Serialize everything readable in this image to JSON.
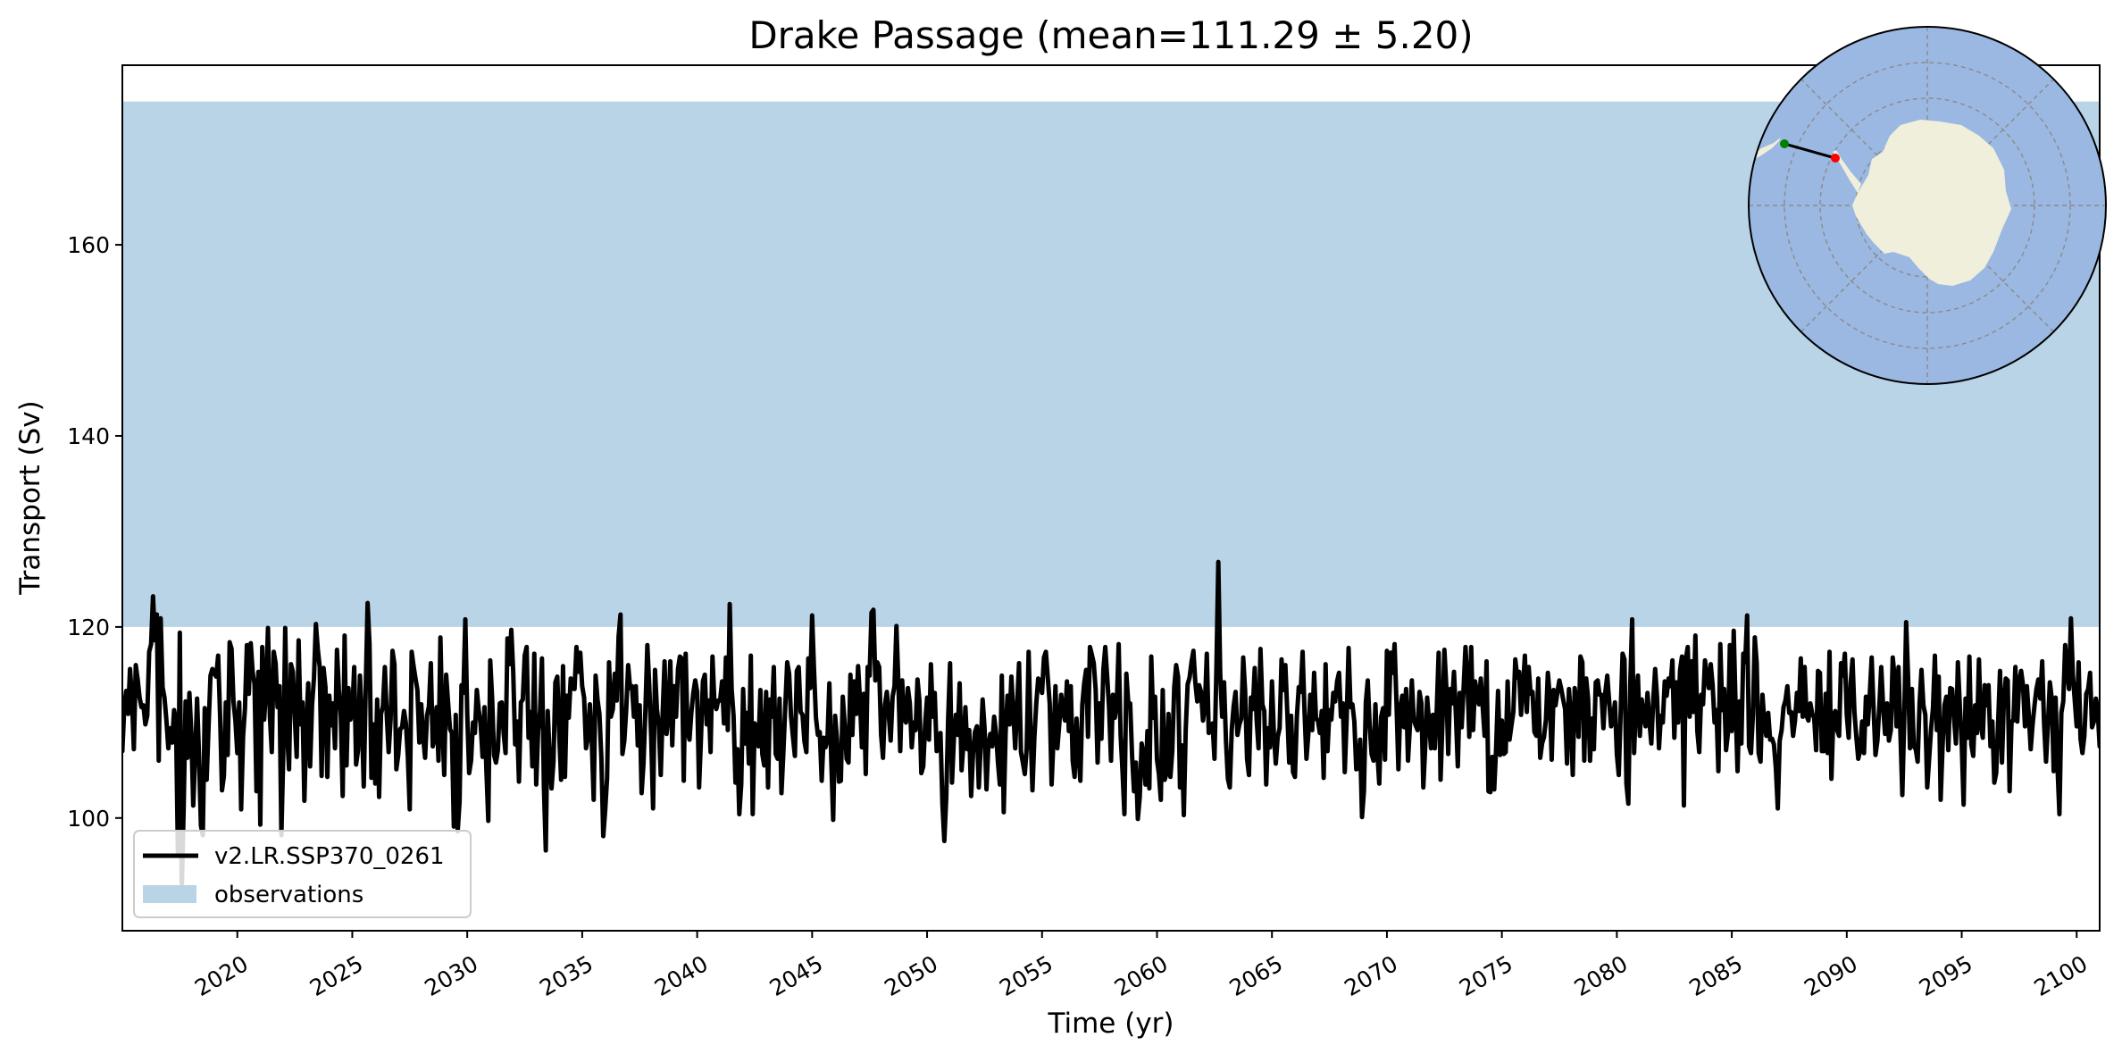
{
  "chart_data": {
    "type": "line",
    "title": "Drake Passage (mean=111.29 ± 5.20)",
    "xlabel": "Time (yr)",
    "ylabel": "Transport (Sv)",
    "xlim": [
      2015,
      2101
    ],
    "ylim": [
      88.2,
      178.8
    ],
    "x_ticks": [
      "2020",
      "2025",
      "2030",
      "2035",
      "2040",
      "2045",
      "2050",
      "2055",
      "2060",
      "2065",
      "2070",
      "2075",
      "2080",
      "2085",
      "2090",
      "2095",
      "2100"
    ],
    "y_ticks": [
      "100",
      "120",
      "140",
      "160"
    ],
    "grid": false,
    "legend_position": "lower-left",
    "observations_band": {
      "name": "observations",
      "ymin": 120,
      "ymax": 175,
      "color": "#b9d4e7"
    },
    "series": [
      {
        "name": "v2.LR.SSP370_0261",
        "color": "#000000",
        "start_year": 2015,
        "months_per_point": 1,
        "values": [
          107.0,
          111.6,
          113.3,
          110.9,
          115.6,
          112.6,
          107.2,
          116.0,
          114.5,
          112.6,
          111.6,
          111.8,
          109.8,
          110.7,
          117.4,
          118.2,
          123.2,
          118.6,
          121.3,
          106.0,
          120.9,
          113.7,
          112.6,
          110.2,
          107.3,
          109.4,
          107.9,
          111.3,
          110.2,
          96.1,
          119.4,
          92.4,
          101.0,
          112.2,
          106.3,
          113.1,
          108.9,
          101.3,
          106.6,
          112.5,
          106.6,
          99.2,
          98.2,
          111.5,
          104.0,
          109.6,
          114.9,
          115.6,
          115.1,
          114.8,
          117.0,
          110.8,
          102.9,
          104.4,
          112.1,
          106.6,
          118.4,
          117.7,
          112.2,
          110.2,
          106.8,
          112.1,
          100.9,
          108.5,
          111.5,
          118.1,
          113.0,
          118.3,
          115.3,
          114.0,
          102.8,
          115.3,
          99.3,
          117.9,
          110.3,
          113.5,
          119.9,
          110.6,
          106.9,
          117.4,
          116.2,
          111.6,
          113.8,
          98.2,
          106.8,
          119.9,
          108.9,
          105.1,
          116.1,
          115.3,
          110.5,
          106.4,
          118.6,
          109.8,
          112.1,
          101.8,
          109.5,
          114.1,
          105.4,
          111.8,
          114.6,
          120.3,
          117.7,
          115.8,
          104.4,
          115.7,
          113.7,
          104.3,
          112.8,
          109.7,
          112.0,
          107.3,
          117.6,
          113.5,
          110.7,
          102.3,
          119.1,
          105.5,
          113.6,
          110.3,
          111.0,
          115.8,
          105.6,
          107.1,
          114.9,
          110.4,
          103.3,
          113.4,
          122.5,
          118.2,
          104.2,
          109.8,
          103.6,
          112.4,
          102.2,
          110.9,
          111.7,
          115.8,
          110.7,
          106.9,
          110.3,
          117.5,
          116.1,
          105.1,
          106.6,
          109.3,
          109.5,
          111.2,
          109.9,
          106.4,
          100.9,
          117.4,
          115.9,
          114.6,
          113.4,
          107.9,
          111.9,
          108.5,
          106.3,
          110.7,
          111.7,
          116.2,
          107.5,
          108.4,
          111.6,
          106.0,
          118.9,
          109.8,
          104.5,
          115.0,
          112.1,
          109.3,
          108.9,
          99.1,
          110.8,
          98.6,
          101.7,
          113.9,
          113.1,
          120.8,
          110.9,
          104.7,
          106.0,
          110.0,
          108.9,
          113.4,
          111.3,
          109.8,
          106.4,
          111.6,
          105.0,
          99.7,
          116.5,
          112.5,
          106.6,
          105.8,
          107.1,
          112.0,
          112.1,
          108.9,
          106.8,
          118.8,
          116.1,
          119.7,
          115.3,
          107.7,
          110.1,
          103.8,
          112.1,
          112.4,
          117.0,
          117.9,
          108.4,
          111.1,
          105.4,
          117.2,
          103.5,
          109.1,
          111.2,
          116.7,
          103.4,
          96.6,
          111.2,
          106.6,
          103.1,
          105.9,
          114.2,
          114.8,
          108.8,
          104.0,
          115.9,
          104.3,
          112.8,
          110.5,
          114.6,
          113.6,
          113.5,
          117.9,
          115.3,
          117.3,
          113.8,
          112.6,
          107.3,
          108.4,
          111.9,
          108.1,
          101.9,
          114.9,
          112.4,
          110.9,
          106.3,
          98.1,
          100.8,
          104.2,
          116.3,
          110.6,
          111.4,
          115.1,
          112.3,
          119.0,
          121.3,
          106.7,
          108.1,
          111.4,
          116.0,
          113.6,
          113.8,
          110.6,
          113.8,
          107.6,
          111.8,
          102.6,
          105.7,
          111.3,
          118.1,
          113.9,
          108.5,
          101.0,
          115.5,
          111.4,
          109.7,
          104.5,
          111.0,
          116.4,
          108.8,
          110.6,
          116.4,
          107.6,
          113.8,
          110.6,
          115.6,
          116.9,
          116.7,
          103.9,
          117.2,
          109.1,
          108.2,
          111.1,
          113.1,
          114.4,
          113.2,
          103.2,
          108.4,
          114.3,
          115.0,
          109.8,
          112.3,
          106.9,
          116.9,
          112.1,
          111.4,
          112.3,
          112.3,
          114.3,
          109.9,
          116.8,
          109.2,
          122.4,
          113.5,
          110.7,
          103.7,
          107.2,
          100.4,
          103.5,
          113.5,
          107.8,
          111.0,
          105.7,
          117.0,
          100.4,
          109.9,
          109.4,
          107.5,
          113.4,
          106.7,
          105.5,
          113.2,
          103.2,
          112.4,
          110.6,
          115.8,
          106.7,
          106.2,
          112.5,
          102.6,
          106.9,
          111.7,
          116.3,
          115.1,
          110.6,
          108.5,
          106.5,
          115.4,
          115.8,
          111.1,
          110.8,
          108.0,
          106.9,
          116.7,
          113.6,
          121.2,
          115.5,
          110.5,
          108.7,
          109.0,
          103.9,
          108.4,
          107.4,
          108.2,
          114.1,
          106.0,
          99.8,
          110.7,
          108.2,
          103.8,
          103.9,
          112.7,
          109.8,
          106.2,
          105.8,
          115.0,
          108.7,
          114.3,
          110.9,
          115.9,
          112.3,
          107.4,
          113.0,
          104.6,
          115.8,
          114.9,
          121.5,
          121.8,
          114.4,
          116.3,
          115.8,
          108.7,
          106.3,
          111.8,
          113.2,
          110.8,
          108.1,
          112.7,
          113.8,
          120.1,
          114.3,
          107.0,
          114.4,
          110.4,
          110.0,
          113.6,
          112.0,
          107.4,
          110.0,
          109.2,
          114.5,
          112.3,
          104.7,
          105.4,
          109.8,
          112.6,
          108.2,
          116.1,
          110.6,
          113.1,
          107.0,
          108.2,
          108.9,
          101.5,
          97.6,
          102.1,
          110.4,
          116.2,
          103.7,
          108.3,
          110.8,
          108.7,
          114.1,
          105.0,
          107.8,
          111.6,
          107.2,
          109.2,
          102.3,
          106.8,
          109.0,
          109.6,
          103.2,
          107.6,
          112.4,
          109.4,
          103.0,
          107.7,
          108.8,
          107.5,
          110.6,
          108.9,
          105.8,
          103.5,
          114.9,
          100.6,
          109.0,
          112.8,
          109.8,
          114.8,
          111.1,
          107.3,
          111.8,
          116.2,
          106.9,
          105.8,
          104.6,
          107.3,
          117.4,
          109.3,
          102.9,
          108.4,
          112.0,
          114.6,
          114.3,
          113.1,
          116.8,
          117.4,
          114.7,
          112.0,
          103.5,
          108.4,
          113.8,
          107.3,
          109.8,
          112.9,
          111.1,
          110.2,
          114.3,
          109.1,
          113.8,
          106.0,
          104.3,
          110.4,
          106.7,
          103.9,
          111.8,
          114.1,
          115.5,
          108.5,
          117.9,
          117.1,
          116.2,
          113.4,
          105.8,
          112.0,
          108.3,
          115.5,
          117.9,
          114.8,
          111.5,
          106.0,
          112.9,
          110.5,
          111.8,
          118.2,
          108.7,
          104.9,
          100.4,
          115.1,
          112.1,
          112.0,
          106.5,
          102.8,
          105.8,
          99.9,
          102.2,
          107.8,
          106.5,
          103.5,
          109.1,
          103.1,
          116.9,
          110.5,
          112.7,
          106.1,
          104.6,
          101.9,
          113.4,
          104.0,
          104.7,
          110.9,
          104.3,
          107.1,
          113.7,
          116.0,
          114.8,
          103.2,
          107.6,
          100.3,
          109.3,
          114.0,
          114.7,
          116.3,
          117.5,
          114.2,
          112.2,
          113.9,
          113.2,
          110.2,
          111.7,
          117.2,
          108.9,
          109.2,
          109.9,
          106.2,
          115.6,
          126.8,
          115.1,
          110.6,
          114.2,
          108.1,
          104.1,
          103.2,
          109.2,
          111.7,
          113.2,
          108.7,
          109.8,
          110.4,
          116.8,
          113.3,
          106.2,
          104.5,
          112.6,
          111.4,
          115.7,
          110.3,
          107.3,
          117.7,
          111.9,
          111.2,
          103.5,
          109.4,
          107.4,
          114.3,
          108.9,
          105.7,
          108.5,
          109.4,
          116.6,
          113.4,
          116.0,
          111.1,
          105.8,
          110.7,
          104.8,
          104.3,
          110.6,
          113.7,
          113.2,
          117.4,
          111.1,
          106.2,
          108.8,
          112.9,
          109.2,
          115.2,
          110.4,
          110.2,
          108.9,
          111.2,
          104.2,
          116.1,
          107.0,
          111.3,
          110.3,
          113.1,
          112.2,
          114.3,
          115.2,
          110.6,
          112.0,
          104.8,
          110.4,
          117.8,
          111.6,
          111.9,
          110.1,
          105.1,
          105.2,
          108.2,
          100.1,
          102.8,
          112.1,
          114.4,
          109.7,
          106.7,
          106.0,
          111.9,
          106.9,
          103.6,
          110.6,
          111.5,
          106.1,
          117.5,
          110.8,
          117.3,
          115.2,
          118.2,
          112.0,
          105.1,
          111.6,
          112.8,
          109.5,
          113.5,
          106.0,
          109.6,
          114.4,
          110.3,
          109.7,
          109.2,
          113.2,
          112.0,
          103.2,
          107.5,
          112.6,
          110.0,
          107.3,
          110.8,
          107.3,
          111.3,
          117.3,
          104.0,
          110.1,
          117.6,
          113.7,
          106.7,
          113.5,
          112.0,
          115.3,
          110.8,
          105.4,
          113.1,
          109.5,
          113.5,
          117.9,
          114.5,
          108.5,
          117.9,
          109.2,
          114.3,
          113.1,
          111.9,
          114.6,
          111.6,
          108.6,
          116.4,
          102.8,
          102.7,
          106.4,
          103.0,
          107.4,
          113.3,
          106.6,
          110.2,
          106.7,
          106.9,
          114.3,
          108.2,
          109.7,
          111.1,
          116.6,
          114.7,
          115.3,
          110.8,
          113.6,
          117.0,
          111.1,
          115.8,
          113.0,
          113.2,
          109.0,
          108.6,
          114.6,
          106.3,
          107.8,
          108.5,
          110.3,
          115.2,
          112.7,
          106.1,
          113.4,
          111.8,
          113.2,
          114.4,
          113.5,
          112.4,
          111.4,
          105.7,
          113.5,
          110.6,
          104.5,
          113.6,
          112.1,
          108.5,
          116.9,
          116.3,
          106.0,
          114.6,
          112.5,
          106.0,
          110.4,
          107.2,
          114.2,
          114.4,
          112.9,
          112.9,
          109.4,
          113.2,
          114.9,
          112.2,
          109.6,
          110.4,
          112.1,
          106.7,
          104.5,
          111.1,
          117.2,
          116.6,
          103.6,
          101.5,
          114.0,
          120.8,
          106.8,
          112.2,
          114.9,
          108.6,
          112.4,
          110.7,
          109.6,
          113.1,
          110.1,
          107.8,
          112.3,
          115.6,
          112.6,
          107.3,
          110.7,
          110.0,
          114.3,
          112.8,
          114.6,
          113.8,
          116.5,
          108.4,
          114.2,
          110.0,
          115.5,
          116.9,
          101.3,
          116.6,
          117.9,
          110.6,
          116.4,
          111.1,
          119.1,
          109.1,
          106.9,
          112.9,
          111.9,
          116.5,
          114.8,
          113.6,
          116.1,
          113.9,
          110.0,
          111.3,
          104.9,
          118.2,
          111.3,
          113.5,
          107.1,
          108.9,
          118.1,
          109.1,
          119.6,
          111.6,
          104.9,
          112.2,
          107.8,
          117.2,
          116.3,
          121.2,
          107.5,
          106.8,
          110.7,
          118.9,
          116.2,
          106.8,
          105.9,
          112.9,
          110.0,
          108.6,
          111.0,
          108.2,
          108.3,
          107.7,
          105.2,
          101.0,
          108.1,
          109.2,
          111.6,
          112.3,
          113.8,
          111.0,
          111.1,
          108.6,
          110.2,
          113.1,
          111.2,
          116.7,
          110.6,
          115.8,
          110.7,
          110.2,
          112.0,
          110.9,
          110.5,
          107.1,
          115.4,
          115.2,
          107.0,
          107.0,
          113.0,
          106.8,
          117.4,
          104.1,
          110.7,
          111.2,
          109.2,
          108.6,
          116.2,
          114.9,
          117.2,
          110.8,
          108.4,
          114.1,
          116.6,
          111.1,
          108.5,
          106.2,
          107.1,
          110.1,
          106.8,
          112.7,
          109.8,
          112.9,
          116.8,
          111.4,
          106.6,
          108.1,
          111.7,
          115.8,
          111.6,
          108.8,
          112.0,
          108.1,
          109.2,
          116.8,
          114.7,
          109.6,
          115.8,
          109.0,
          102.4,
          110.5,
          120.5,
          114.8,
          107.3,
          113.5,
          107.5,
          107.2,
          105.9,
          112.0,
          115.5,
          111.8,
          110.8,
          103.2,
          106.2,
          109.3,
          111.5,
          117.0,
          109.2,
          114.8,
          101.9,
          107.5,
          111.8,
          112.7,
          107.1,
          113.6,
          113.5,
          110.4,
          107.8,
          116.3,
          111.8,
          107.8,
          101.4,
          112.5,
          108.4,
          116.9,
          107.7,
          106.5,
          111.8,
          108.9,
          116.6,
          109.8,
          108.4,
          113.9,
          111.8,
          113.9,
          107.5,
          110.1,
          103.7,
          104.7,
          110.0,
          115.4,
          105.8,
          112.3,
          114.6,
          114.4,
          102.8,
          110.1,
          110.2,
          115.8,
          110.1,
          114.3,
          115.4,
          113.9,
          109.6,
          113.8,
          110.8,
          107.2,
          109.8,
          111.8,
          113.5,
          114.5,
          112.5,
          116.4,
          109.8,
          105.9,
          109.8,
          114.2,
          112.5,
          104.9,
          112.6,
          105.3,
          100.4,
          111.0,
          112.2,
          118.1,
          115.5,
          113.5,
          120.9,
          115.0,
          112.3,
          109.6,
          116.3,
          108.3,
          106.8,
          108.6,
          113.0,
          113.5,
          115.2,
          109.5,
          110.1,
          112.5,
          111.2,
          107.5,
          115.1,
          107.8,
          111.0,
          110.2,
          111.5,
          104.1,
          116.2,
          107.6,
          112.0,
          109.5,
          110.1,
          105.1,
          112.3,
          106.8,
          111.1,
          108.4,
          107.8,
          117.6,
          102.8,
          110.8,
          108.3,
          113.6,
          108.6,
          108.9,
          105.0,
          108.6,
          105.5,
          110.3,
          115.5,
          114.1,
          108.0,
          114.7,
          111.2,
          109.1,
          108.7,
          108.7,
          108.2,
          110.6,
          111.1,
          114.7,
          117.2,
          116.4,
          115.3,
          117.1,
          110.7,
          110.5,
          112.4,
          115.4,
          108.4,
          116.7,
          112.5,
          113.2,
          107.7,
          110.3,
          107.8,
          117.0,
          115.5,
          108.9,
          120.8,
          109.7,
          110.5,
          113.6,
          108.1
        ]
      }
    ],
    "inset_map": {
      "markers": [
        {
          "name": "section-start",
          "color": "#008000"
        },
        {
          "name": "section-end",
          "color": "#ff0000"
        }
      ],
      "ocean_color": "#9bb8e2",
      "land_color": "#efefdc"
    }
  }
}
